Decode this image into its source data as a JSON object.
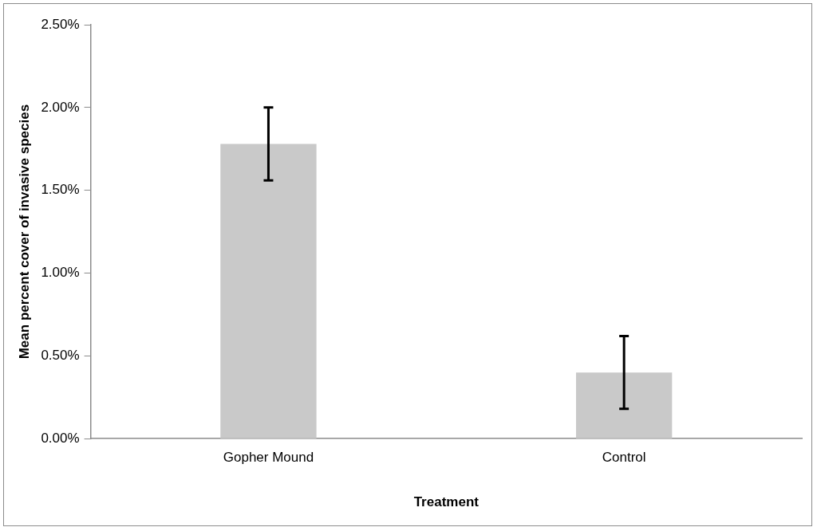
{
  "chart_data": {
    "type": "bar",
    "xlabel": "Treatment",
    "ylabel": "Mean percent cover of invasive species",
    "categories": [
      "Gopher Mound",
      "Control"
    ],
    "values": [
      1.78,
      0.4
    ],
    "errors": [
      0.22,
      0.22
    ],
    "color": "#c9c9c9",
    "ylim": [
      0,
      2.5
    ],
    "yticks": [
      {
        "value": 0,
        "label": "0.00%"
      },
      {
        "value": 0.5,
        "label": "0.50%"
      },
      {
        "value": 1,
        "label": "1.00%"
      },
      {
        "value": 1.5,
        "label": "1.50%"
      },
      {
        "value": 2,
        "label": "2.00%"
      },
      {
        "value": 2.5,
        "label": "2.50%"
      }
    ],
    "grid": false,
    "legend": false
  }
}
